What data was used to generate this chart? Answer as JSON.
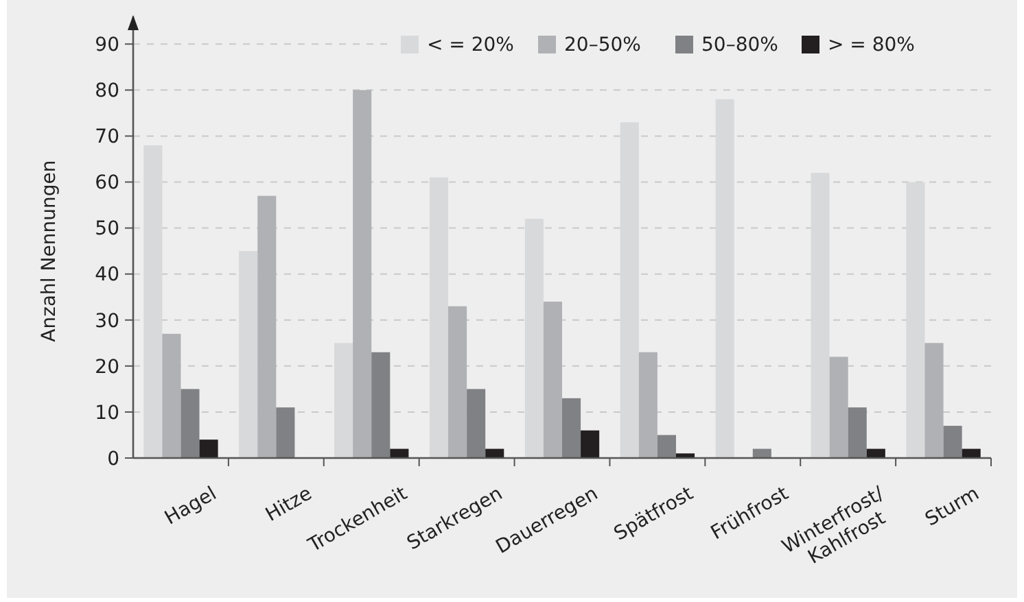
{
  "chart_data": {
    "type": "bar",
    "ylabel": "Anzahl Nennungen",
    "categories": [
      "Hagel",
      "Hitze",
      "Trockenheit",
      "Starkregen",
      "Dauerregen",
      "Spätfrost",
      "Frühfrost",
      "Winterfrost/\nKahlfrost",
      "Sturm"
    ],
    "series": [
      {
        "name": "< = 20%",
        "color": "#d8d9db",
        "values": [
          68,
          45,
          25,
          61,
          52,
          73,
          78,
          62,
          60
        ]
      },
      {
        "name": "20–50%",
        "color": "#b0b1b4",
        "values": [
          27,
          57,
          80,
          33,
          34,
          23,
          0,
          22,
          25
        ]
      },
      {
        "name": "50–80%",
        "color": "#808184",
        "values": [
          15,
          11,
          23,
          15,
          13,
          5,
          2,
          11,
          7
        ]
      },
      {
        "name": "> = 80%",
        "color": "#231f20",
        "values": [
          4,
          0,
          2,
          2,
          6,
          1,
          0,
          2,
          2
        ]
      }
    ],
    "ylim": [
      0,
      96
    ],
    "yticks": [
      0,
      10,
      20,
      30,
      40,
      50,
      60,
      70,
      80,
      90
    ],
    "grid": "y",
    "legend": "top right"
  }
}
